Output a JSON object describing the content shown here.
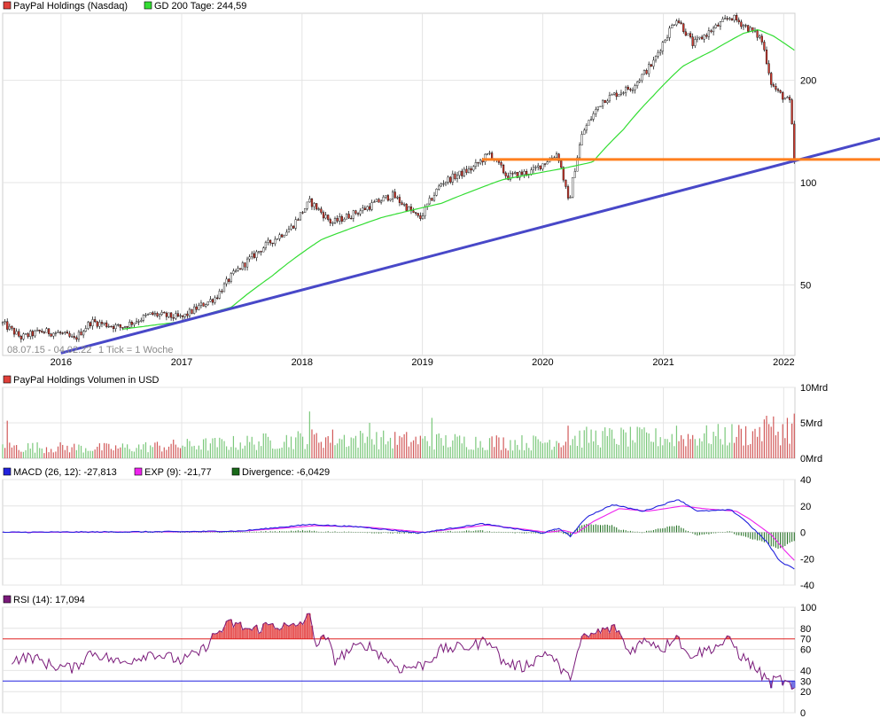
{
  "chart_data": [
    {
      "type": "candlestick",
      "legend": [
        {
          "label": "PayPal Holdings (Nasdaq)",
          "color": "#e0403a"
        },
        {
          "label": "GD 200 Tage: 244,59",
          "color": "#33dd33"
        }
      ],
      "range_label": "08.07.15 - 04.02.22",
      "tick_label": "1 Tick = 1 Woche",
      "x_ticks": [
        "2016",
        "2017",
        "2018",
        "2019",
        "2020",
        "2021",
        "2022"
      ],
      "y_scale": "log",
      "y_ticks": [
        50,
        100,
        200
      ],
      "y_tick_labels": [
        "50",
        "100",
        "200"
      ],
      "ylim": [
        31,
        315
      ],
      "price_anchors": [
        [
          "2015-07-08",
          38.5
        ],
        [
          "2015-09-01",
          35.0
        ],
        [
          "2015-11-01",
          36.5
        ],
        [
          "2016-01-01",
          36.0
        ],
        [
          "2016-02-10",
          34.5
        ],
        [
          "2016-04-01",
          39.0
        ],
        [
          "2016-07-01",
          37.5
        ],
        [
          "2016-10-01",
          41.0
        ],
        [
          "2017-01-01",
          40.0
        ],
        [
          "2017-03-01",
          43.5
        ],
        [
          "2017-04-15",
          46.0
        ],
        [
          "2017-06-01",
          53.0
        ],
        [
          "2017-09-01",
          64.0
        ],
        [
          "2017-12-01",
          74.0
        ],
        [
          "2018-01-25",
          88.0
        ],
        [
          "2018-04-01",
          76.0
        ],
        [
          "2018-07-01",
          83.0
        ],
        [
          "2018-10-01",
          92.0
        ],
        [
          "2018-12-24",
          78.0
        ],
        [
          "2019-03-01",
          100.0
        ],
        [
          "2019-06-01",
          110.0
        ],
        [
          "2019-07-25",
          122.0
        ],
        [
          "2019-09-15",
          104.0
        ],
        [
          "2019-12-01",
          108.0
        ],
        [
          "2020-02-15",
          122.0
        ],
        [
          "2020-03-20",
          86.0
        ],
        [
          "2020-05-01",
          140.0
        ],
        [
          "2020-07-01",
          175.0
        ],
        [
          "2020-10-01",
          192.0
        ],
        [
          "2020-12-01",
          225.0
        ],
        [
          "2021-02-10",
          305.0
        ],
        [
          "2021-04-01",
          255.0
        ],
        [
          "2021-07-25",
          308.0
        ],
        [
          "2021-09-15",
          285.0
        ],
        [
          "2021-10-25",
          265.0
        ],
        [
          "2021-11-25",
          195.0
        ],
        [
          "2021-12-15",
          184.0
        ],
        [
          "2022-01-20",
          172.0
        ],
        [
          "2022-02-02",
          115.0
        ],
        [
          "2022-02-04",
          116.0
        ]
      ],
      "gd200_anchors": [
        [
          "2016-07-01",
          37.0
        ],
        [
          "2017-01-01",
          39.0
        ],
        [
          "2017-06-01",
          43.0
        ],
        [
          "2017-10-01",
          53.0
        ],
        [
          "2018-03-01",
          68.0
        ],
        [
          "2018-09-01",
          79.0
        ],
        [
          "2019-03-01",
          87.0
        ],
        [
          "2019-09-01",
          102.0
        ],
        [
          "2020-03-01",
          110.0
        ],
        [
          "2020-06-01",
          115.0
        ],
        [
          "2020-09-01",
          143.0
        ],
        [
          "2020-12-01",
          180.0
        ],
        [
          "2021-03-01",
          220.0
        ],
        [
          "2021-06-01",
          245.0
        ],
        [
          "2021-09-01",
          275.0
        ],
        [
          "2021-10-15",
          282.0
        ],
        [
          "2021-12-01",
          270.0
        ],
        [
          "2022-02-04",
          244.59
        ]
      ],
      "trendline_blue": [
        [
          "2016-01-01",
          31.5
        ],
        [
          "2022-02-04",
          116.0
        ]
      ],
      "support_orange": {
        "from": "2019-07-01",
        "value": 117.0
      }
    },
    {
      "type": "bar",
      "legend": [
        {
          "label": "PayPal Holdings Volumen in USD",
          "color": "#e0403a"
        }
      ],
      "y_ticks": [
        0,
        5,
        10
      ],
      "y_tick_labels": [
        "0Mrd",
        "5Mrd",
        "10Mrd"
      ],
      "ylim": [
        0,
        10
      ],
      "unit": "Mrd",
      "volume_level_anchors": [
        [
          "2015-07-08",
          1.7
        ],
        [
          "2016-06-01",
          1.5
        ],
        [
          "2017-06-01",
          2.2
        ],
        [
          "2018-03-01",
          3.0
        ],
        [
          "2019-01-01",
          2.6
        ],
        [
          "2019-12-01",
          2.3
        ],
        [
          "2020-06-01",
          3.2
        ],
        [
          "2021-01-01",
          3.0
        ],
        [
          "2021-10-01",
          3.6
        ],
        [
          "2022-02-04",
          4.3
        ]
      ],
      "volume_spikes": [
        [
          "2015-07-22",
          5.3
        ],
        [
          "2018-01-25",
          6.6
        ],
        [
          "2018-07-25",
          5.0
        ],
        [
          "2019-01-30",
          5.7
        ],
        [
          "2020-03-18",
          4.6
        ],
        [
          "2020-10-28",
          4.1
        ],
        [
          "2021-02-10",
          4.6
        ],
        [
          "2021-10-20",
          4.4
        ],
        [
          "2021-11-10",
          6.0
        ],
        [
          "2021-12-01",
          5.9
        ],
        [
          "2022-01-10",
          5.7
        ],
        [
          "2022-02-03",
          6.3
        ]
      ]
    },
    {
      "type": "line",
      "legend": [
        {
          "label": "MACD (26, 12): -27,813",
          "color": "#2222dd"
        },
        {
          "label": "EXP (9): -21,77",
          "color": "#ee22ee"
        },
        {
          "label": "Divergence: -6,0429",
          "color": "#1a6a1a"
        }
      ],
      "y_ticks": [
        -40,
        -20,
        0,
        20,
        40
      ],
      "y_tick_labels": [
        "-40",
        "-20",
        "0",
        "20",
        "40"
      ],
      "ylim": [
        -40,
        40
      ],
      "macd_anchors": [
        [
          "2015-07-08",
          0.0
        ],
        [
          "2017-01-01",
          0.5
        ],
        [
          "2017-07-01",
          1.0
        ],
        [
          "2018-01-25",
          6.0
        ],
        [
          "2018-07-01",
          4.0
        ],
        [
          "2018-12-24",
          -0.5
        ],
        [
          "2019-07-01",
          6.5
        ],
        [
          "2019-10-01",
          3.0
        ],
        [
          "2020-01-01",
          -0.5
        ],
        [
          "2020-02-20",
          3.0
        ],
        [
          "2020-03-25",
          -3.0
        ],
        [
          "2020-05-15",
          12.0
        ],
        [
          "2020-08-01",
          21.0
        ],
        [
          "2020-11-01",
          16.0
        ],
        [
          "2021-02-15",
          25.0
        ],
        [
          "2021-04-15",
          16.0
        ],
        [
          "2021-07-25",
          17.0
        ],
        [
          "2021-09-01",
          10.0
        ],
        [
          "2021-11-10",
          -7.0
        ],
        [
          "2021-12-20",
          -22.0
        ],
        [
          "2022-02-04",
          -27.8
        ]
      ],
      "signal_anchors": [
        [
          "2015-07-08",
          0.0
        ],
        [
          "2017-01-01",
          0.4
        ],
        [
          "2017-07-01",
          0.8
        ],
        [
          "2018-02-10",
          5.0
        ],
        [
          "2018-07-15",
          4.0
        ],
        [
          "2019-01-10",
          0.0
        ],
        [
          "2019-07-15",
          5.5
        ],
        [
          "2019-10-15",
          3.0
        ],
        [
          "2020-01-15",
          0.0
        ],
        [
          "2020-03-05",
          1.5
        ],
        [
          "2020-04-10",
          -1.0
        ],
        [
          "2020-06-01",
          8.0
        ],
        [
          "2020-08-20",
          18.0
        ],
        [
          "2020-11-15",
          16.0
        ],
        [
          "2021-03-01",
          20.0
        ],
        [
          "2021-05-01",
          18.0
        ],
        [
          "2021-08-10",
          16.0
        ],
        [
          "2021-09-20",
          10.0
        ],
        [
          "2021-11-25",
          -2.0
        ],
        [
          "2022-01-05",
          -14.0
        ],
        [
          "2022-02-04",
          -21.77
        ]
      ]
    },
    {
      "type": "line",
      "legend": [
        {
          "label": "RSI (14): 17,094",
          "color": "#7a1a7a"
        }
      ],
      "y_ticks": [
        0,
        20,
        40,
        60,
        80,
        100
      ],
      "y_tick_labels": [
        "0",
        "20",
        "40",
        "60",
        "80",
        "100"
      ],
      "ylim": [
        0,
        100
      ],
      "levels": [
        {
          "value": 70,
          "label": "70",
          "color": "#e02020"
        },
        {
          "value": 30,
          "label": "30",
          "color": "#2020e0"
        }
      ],
      "rsi_anchors": [
        [
          "2015-08-01",
          50
        ],
        [
          "2015-10-01",
          53
        ],
        [
          "2015-12-01",
          45
        ],
        [
          "2016-02-10",
          42
        ],
        [
          "2016-04-01",
          58
        ],
        [
          "2016-07-01",
          47
        ],
        [
          "2016-10-01",
          57
        ],
        [
          "2017-01-01",
          49
        ],
        [
          "2017-03-01",
          58
        ],
        [
          "2017-04-15",
          75
        ],
        [
          "2017-06-01",
          85
        ],
        [
          "2017-08-01",
          78
        ],
        [
          "2017-10-01",
          84
        ],
        [
          "2017-12-01",
          80
        ],
        [
          "2018-01-25",
          91
        ],
        [
          "2018-02-15",
          64
        ],
        [
          "2018-03-15",
          72
        ],
        [
          "2018-04-10",
          50
        ],
        [
          "2018-06-01",
          60
        ],
        [
          "2018-07-15",
          65
        ],
        [
          "2018-10-25",
          42
        ],
        [
          "2019-01-01",
          45
        ],
        [
          "2019-03-01",
          60
        ],
        [
          "2019-06-01",
          63
        ],
        [
          "2019-07-25",
          70
        ],
        [
          "2019-09-01",
          48
        ],
        [
          "2019-11-01",
          43
        ],
        [
          "2020-01-15",
          58
        ],
        [
          "2020-03-20",
          32
        ],
        [
          "2020-05-01",
          70
        ],
        [
          "2020-07-01",
          78
        ],
        [
          "2020-08-15",
          80
        ],
        [
          "2020-09-15",
          58
        ],
        [
          "2020-11-15",
          70
        ],
        [
          "2021-01-01",
          60
        ],
        [
          "2021-02-10",
          76
        ],
        [
          "2021-03-10",
          55
        ],
        [
          "2021-05-01",
          58
        ],
        [
          "2021-07-25",
          69
        ],
        [
          "2021-08-20",
          55
        ],
        [
          "2021-10-01",
          44
        ],
        [
          "2021-11-20",
          28
        ],
        [
          "2021-12-20",
          32
        ],
        [
          "2022-01-20",
          25
        ],
        [
          "2022-02-04",
          17.094
        ]
      ]
    }
  ]
}
